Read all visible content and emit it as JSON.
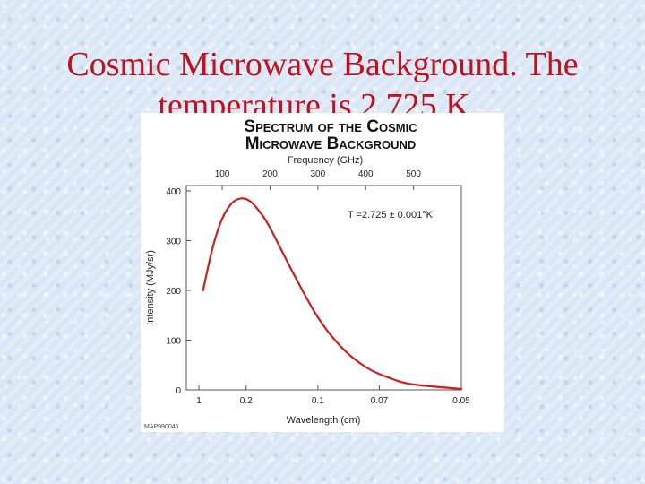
{
  "slide": {
    "title_line1": "Cosmic Microwave Background. The",
    "title_line2": "temperature is 2.725 K.."
  },
  "chart_data": {
    "type": "line",
    "title_line1": "Spectrum of the Cosmic",
    "title_line2": "Microwave Background",
    "top_axis_label": "Frequency (GHz)",
    "top_ticks": [
      {
        "label": "100",
        "ghz": 100
      },
      {
        "label": "200",
        "ghz": 200
      },
      {
        "label": "300",
        "ghz": 300
      },
      {
        "label": "400",
        "ghz": 400
      },
      {
        "label": "500",
        "ghz": 500
      }
    ],
    "xlabel": "Wavelength (cm)",
    "x_ticks": [
      {
        "label": "1",
        "cm": 1
      },
      {
        "label": "0.2",
        "cm": 0.2
      },
      {
        "label": "0.1",
        "cm": 0.1
      },
      {
        "label": "0.07",
        "cm": 0.07
      },
      {
        "label": "0.05",
        "cm": 0.05
      }
    ],
    "ylabel": "Intensity (MJy/sr)",
    "ylim": [
      0,
      400
    ],
    "y_ticks": [
      "0",
      "100",
      "200",
      "300",
      "400"
    ],
    "annotation": "T =2.725 ± 0.001°K",
    "credit": "MAP990045",
    "series": [
      {
        "color": "#cc1f1f",
        "points": [
          {
            "ghz": 60,
            "y": 200
          },
          {
            "ghz": 80,
            "y": 286
          },
          {
            "ghz": 100,
            "y": 344
          },
          {
            "ghz": 120,
            "y": 375
          },
          {
            "ghz": 140,
            "y": 385
          },
          {
            "ghz": 160,
            "y": 378
          },
          {
            "ghz": 180,
            "y": 356
          },
          {
            "ghz": 200,
            "y": 326
          },
          {
            "ghz": 250,
            "y": 232
          },
          {
            "ghz": 300,
            "y": 146
          },
          {
            "ghz": 350,
            "y": 85
          },
          {
            "ghz": 400,
            "y": 46
          },
          {
            "ghz": 450,
            "y": 24
          },
          {
            "ghz": 500,
            "y": 11
          },
          {
            "ghz": 600,
            "y": 2
          }
        ]
      }
    ]
  }
}
